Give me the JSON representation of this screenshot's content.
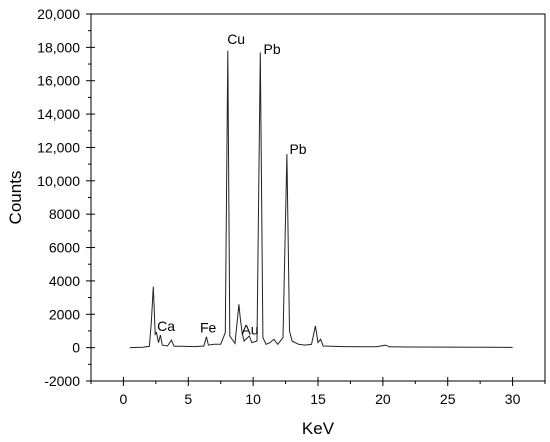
{
  "chart_data": {
    "type": "line",
    "xlabel": "KeV",
    "ylabel": "Counts",
    "xlim": [
      -2.5,
      32.5
    ],
    "ylim": [
      -2000,
      20000
    ],
    "x_ticks": [
      0,
      5,
      10,
      15,
      20,
      25,
      30
    ],
    "y_ticks": [
      -2000,
      0,
      2000,
      4000,
      6000,
      8000,
      10000,
      12000,
      14000,
      16000,
      18000,
      20000
    ],
    "x_tick_labels": [
      "0",
      "5",
      "10",
      "15",
      "20",
      "25",
      "30"
    ],
    "y_tick_labels": [
      "-2000",
      "0",
      "2000",
      "4000",
      "6000",
      "8000",
      "10,000",
      "12,000",
      "14,000",
      "16,000",
      "18,000",
      "20,000"
    ],
    "series": [
      {
        "points": [
          [
            0.5,
            0
          ],
          [
            1.5,
            20
          ],
          [
            2.0,
            80
          ],
          [
            2.15,
            1500
          ],
          [
            2.3,
            3650
          ],
          [
            2.45,
            800
          ],
          [
            2.55,
            900
          ],
          [
            2.7,
            300
          ],
          [
            2.85,
            750
          ],
          [
            3.0,
            150
          ],
          [
            3.4,
            100
          ],
          [
            3.7,
            450
          ],
          [
            3.9,
            80
          ],
          [
            4.5,
            80
          ],
          [
            5.5,
            60
          ],
          [
            6.2,
            100
          ],
          [
            6.4,
            650
          ],
          [
            6.55,
            150
          ],
          [
            7.0,
            200
          ],
          [
            7.5,
            200
          ],
          [
            7.85,
            900
          ],
          [
            8.05,
            17800
          ],
          [
            8.2,
            700
          ],
          [
            8.6,
            250
          ],
          [
            8.9,
            2600
          ],
          [
            9.0,
            1800
          ],
          [
            9.15,
            900
          ],
          [
            9.3,
            400
          ],
          [
            9.7,
            700
          ],
          [
            9.9,
            300
          ],
          [
            10.3,
            400
          ],
          [
            10.55,
            17700
          ],
          [
            10.75,
            600
          ],
          [
            11.0,
            200
          ],
          [
            11.3,
            300
          ],
          [
            11.6,
            500
          ],
          [
            11.9,
            200
          ],
          [
            12.3,
            600
          ],
          [
            12.6,
            11600
          ],
          [
            12.8,
            1000
          ],
          [
            13.0,
            400
          ],
          [
            13.5,
            200
          ],
          [
            14.0,
            150
          ],
          [
            14.5,
            200
          ],
          [
            14.8,
            1300
          ],
          [
            15.0,
            300
          ],
          [
            15.2,
            500
          ],
          [
            15.4,
            100
          ],
          [
            16.0,
            80
          ],
          [
            17.0,
            60
          ],
          [
            18.5,
            50
          ],
          [
            19.5,
            50
          ],
          [
            20.2,
            150
          ],
          [
            20.5,
            50
          ],
          [
            22.0,
            40
          ],
          [
            25.0,
            30
          ],
          [
            28.0,
            20
          ],
          [
            30.0,
            15
          ]
        ]
      }
    ],
    "annotations": [
      {
        "text": "Cu",
        "x": 8.0,
        "y": 18200
      },
      {
        "text": "Pb",
        "x": 10.8,
        "y": 17600
      },
      {
        "text": "Pb",
        "x": 12.8,
        "y": 11600
      },
      {
        "text": "Ca",
        "x": 2.6,
        "y": 1000
      },
      {
        "text": "Fe",
        "x": 5.9,
        "y": 900
      },
      {
        "text": "Au",
        "x": 9.1,
        "y": 800
      }
    ],
    "grid": false,
    "legend": false
  }
}
